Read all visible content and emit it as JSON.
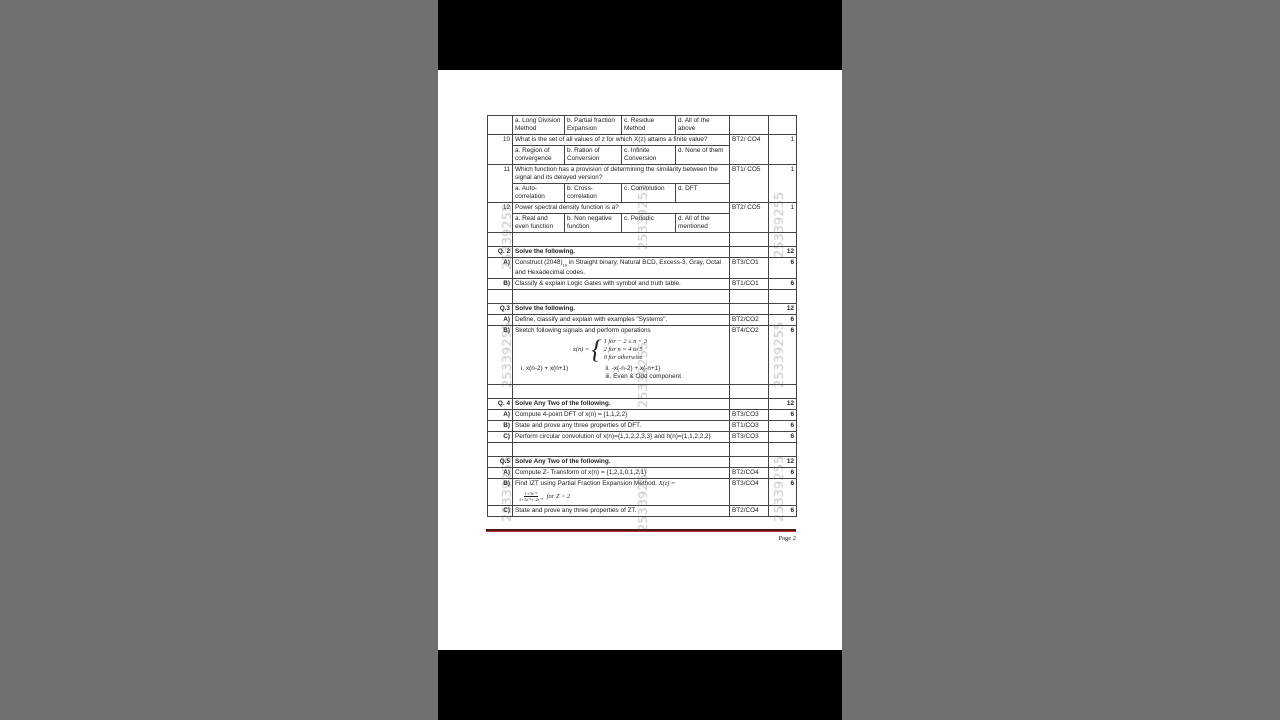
{
  "mcq": [
    {
      "num": "",
      "question": "",
      "bt": "",
      "marks": "",
      "options": [
        "a. Long Division Method",
        "b. Partial fraction Expansion",
        "c. Residue Method",
        "d. All of the above"
      ]
    },
    {
      "num": "10",
      "question": "What is the set of all values of z for which X(z) attains a finite value?",
      "bt": "BT2/ CO4",
      "marks": "1",
      "options": [
        "a. Region of convergence",
        "b. Ration of Conversion",
        "c. Infinite Conversion",
        "d. None of them"
      ]
    },
    {
      "num": "11",
      "question": "Which function has a provision of determining the similarity between the signal and its delayed version?",
      "bt": "BT1/ CO5",
      "marks": "1",
      "options": [
        "a. Auto-correlation",
        "b. Cross-correlation",
        "c. Convolution",
        "d. DFT"
      ]
    },
    {
      "num": "12",
      "question": "Power spectral density function is a?",
      "bt": "BT2/ CO5",
      "marks": "1",
      "options": [
        "a. Real and even function",
        "b. Non negative function",
        "c. Periodic",
        "d. All of the mentioned"
      ]
    }
  ],
  "sections": [
    {
      "label": "Q. 2",
      "title": "Solve the following.",
      "marks": "12",
      "items": [
        {
          "label": "A)",
          "type": "sub",
          "text": "Construct (2048)",
          "sub": "10",
          "text_after": " in Straight binary, Natural BCD, Excess-3, Gray, Octal and Hexadecimal codes.",
          "bt": "BT3/CO1",
          "marks": "6"
        },
        {
          "label": "B)",
          "text": "Classify & explain Logic Gates with symbol and truth table.",
          "bt": "BT1/CO1",
          "marks": "6"
        }
      ]
    },
    {
      "label": "Q.3",
      "title": "Solve the following.",
      "marks": "12",
      "items": [
        {
          "label": "A)",
          "text": "Define, classify and explain with examples \"Systems\".",
          "bt": "BT2/CO2",
          "marks": "6"
        },
        {
          "label": "B)",
          "type": "piecewise",
          "text": "Sketch following signals and perform operations",
          "lhs": "x(n) =",
          "cases": [
            "1  for − 2 ≤ n < 3",
            "2   for n = 4 to 5",
            "0  for otherwise"
          ],
          "ops": [
            "i. x(n-2) + x(n+1)",
            "ii.  -x(-n-2) + x(-n+1)",
            "iii. Even & Odd component"
          ],
          "bt": "BT4/CO2",
          "marks": "6"
        }
      ]
    },
    {
      "label": "Q. 4",
      "title": "Solve Any Two of the following.",
      "marks": "12",
      "items": [
        {
          "label": "A)",
          "text": "Compute 4-point DFT of x(n) = {1,1,2,2}",
          "bt": "BT3/CO3",
          "marks": "6"
        },
        {
          "label": "B)",
          "text": "State and prove any three properties of DFT.",
          "bt": "BT1/CO3",
          "marks": "6"
        },
        {
          "label": "C)",
          "text": "Perform circular convolution of x(n)={1,1,2,2,3,3}  and h(n)={1,1,2,2,2}",
          "bt": "BT3/CO3",
          "marks": "6"
        }
      ]
    },
    {
      "label": "Q.5",
      "title": "Solve Any Two of the following.",
      "marks": "12",
      "items": [
        {
          "label": "A)",
          "text": "Compute Z- Transform of x(n) = {1,2,1,0,1,2,1}",
          "bt": "BT2/CO4",
          "marks": "6"
        },
        {
          "label": "B)",
          "type": "fraction",
          "text": "Find IZT using Partial Fraction Expansion Method.",
          "expr": "X(z) =",
          "numerator": "1+3z⁻¹",
          "denominator": "1+3z⁻¹+ 2z⁻²",
          "condition": "for Z > 2",
          "bt": "BT3/CO4",
          "marks": "6"
        },
        {
          "label": "C)",
          "text": "State and prove any three properties of ZT.",
          "bt": "BT2/CO4",
          "marks": "6"
        }
      ]
    }
  ],
  "footer": {
    "page": "Page 2"
  },
  "watermark": "25339255",
  "colors": {
    "frame": "#000000",
    "page": "#ffffff",
    "footer_rule": "#4a1a1a"
  }
}
